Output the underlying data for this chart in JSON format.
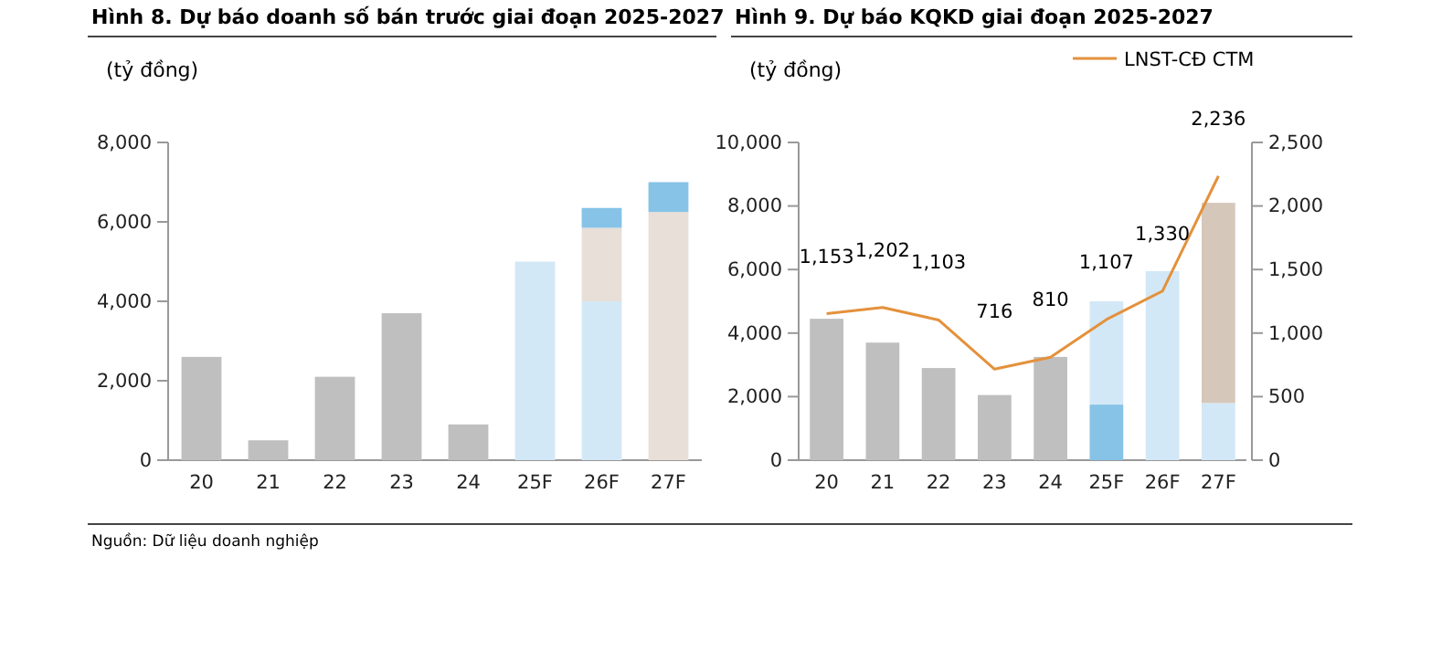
{
  "chart_data": [
    {
      "type": "bar",
      "title": "Hình 8. Dự báo doanh số bán trước giai đoạn 2025-2027",
      "ylabel": "(tỷ đồng)",
      "categories": [
        "20",
        "21",
        "22",
        "23",
        "24",
        "25F",
        "26F",
        "27F"
      ],
      "stacked": true,
      "ylim": [
        0,
        8000
      ],
      "yticks": [
        {
          "value": 0,
          "label": "0"
        },
        {
          "value": 2000,
          "label": "2,000"
        },
        {
          "value": 4000,
          "label": "4,000"
        },
        {
          "value": 6000,
          "label": "6,000"
        },
        {
          "value": 8000,
          "label": "8,000"
        }
      ],
      "grid": false,
      "legend": false,
      "series": [
        {
          "color": "#bfbfbf",
          "values": [
            2600,
            500,
            2100,
            3700,
            900,
            null,
            null,
            null
          ]
        },
        {
          "color": "#d3e8f6",
          "values": [
            null,
            null,
            null,
            null,
            null,
            5000,
            4000,
            null
          ]
        },
        {
          "color": "#e8dfd8",
          "values": [
            null,
            null,
            null,
            null,
            null,
            null,
            1850,
            6250
          ]
        },
        {
          "color": "#86c3e6",
          "values": [
            null,
            null,
            null,
            null,
            null,
            null,
            500,
            750
          ]
        }
      ],
      "annotations": [
        "Nguồn: Dữ liệu doanh nghiệp"
      ]
    },
    {
      "type": "bar",
      "title": "Hình 9. Dự báo KQKD giai đoạn 2025-2027",
      "ylabel": "(tỷ đồng)",
      "categories": [
        "20",
        "21",
        "22",
        "23",
        "24",
        "25F",
        "26F",
        "27F"
      ],
      "stacked": true,
      "ylim": [
        0,
        10000
      ],
      "yticks": [
        {
          "value": 0,
          "label": "0"
        },
        {
          "value": 2000,
          "label": "2,000"
        },
        {
          "value": 4000,
          "label": "4,000"
        },
        {
          "value": 6000,
          "label": "6,000"
        },
        {
          "value": 8000,
          "label": "8,000"
        },
        {
          "value": 10000,
          "label": "10,000"
        }
      ],
      "y2lim": [
        0,
        2500
      ],
      "y2ticks": [
        {
          "value": 0,
          "label": "0"
        },
        {
          "value": 500,
          "label": "500"
        },
        {
          "value": 1000,
          "label": "1,000"
        },
        {
          "value": 1500,
          "label": "1,500"
        },
        {
          "value": 2000,
          "label": "2,000"
        },
        {
          "value": 2500,
          "label": "2,500"
        }
      ],
      "grid": false,
      "legend": "top right",
      "series": [
        {
          "color": "#bfbfbf",
          "values": [
            4450,
            3700,
            2900,
            2050,
            3250,
            null,
            null,
            null
          ]
        },
        {
          "color": "#86c3e6",
          "values": [
            null,
            null,
            null,
            null,
            null,
            1750,
            null,
            null
          ]
        },
        {
          "color": "#d3e8f6",
          "values": [
            null,
            null,
            null,
            null,
            null,
            3250,
            5950,
            1800
          ]
        },
        {
          "color": "#d6c7bb",
          "values": [
            null,
            null,
            null,
            null,
            null,
            null,
            null,
            6300
          ]
        },
        {
          "type": "line",
          "axis": "y2",
          "name": "LNST-CĐ CTM",
          "color": "#e4913c",
          "values": [
            1153,
            1202,
            1103,
            716,
            810,
            1107,
            1330,
            2236
          ],
          "value_labels": [
            "1,153",
            "1,202",
            "1,103",
            "716",
            "810",
            "1,107",
            "1,330",
            "2,236"
          ]
        }
      ]
    }
  ]
}
